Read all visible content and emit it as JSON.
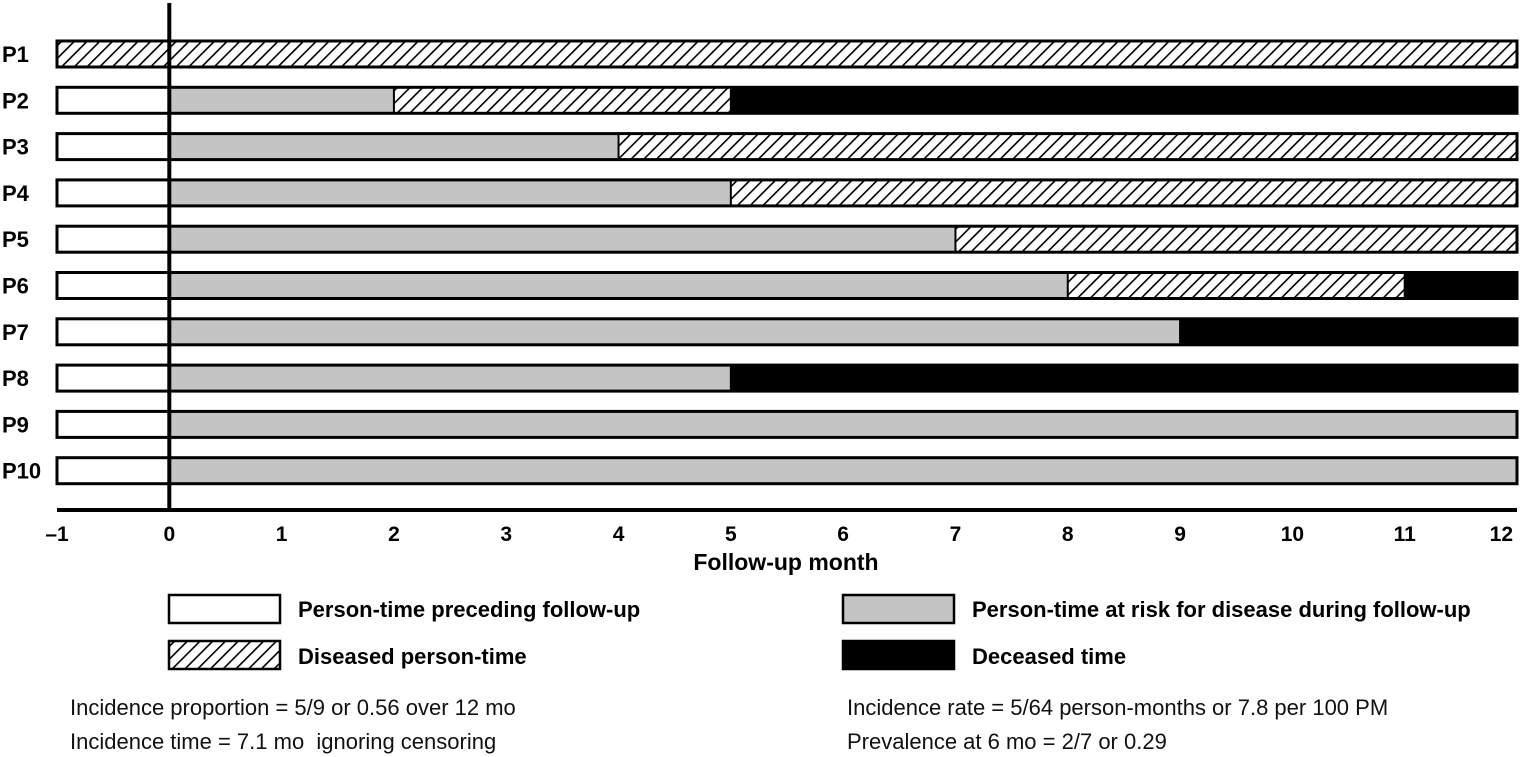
{
  "chart_data": {
    "type": "timeline",
    "xlabel": "Follow-up month",
    "xlim": [
      -1,
      12
    ],
    "x_ticks": [
      "–1",
      "0",
      "1",
      "2",
      "3",
      "4",
      "5",
      "6",
      "7",
      "8",
      "9",
      "10",
      "11",
      "12"
    ],
    "segment_colors": {
      "preceding": "#ffffff",
      "at_risk": "#c4c4c4",
      "diseased": "hatch",
      "deceased": "#000000"
    },
    "participants": [
      {
        "label": "P1",
        "segments": [
          {
            "start": -1,
            "end": 12,
            "state": "diseased"
          }
        ]
      },
      {
        "label": "P2",
        "segments": [
          {
            "start": -1,
            "end": 0,
            "state": "preceding"
          },
          {
            "start": 0,
            "end": 2,
            "state": "at_risk"
          },
          {
            "start": 2,
            "end": 5,
            "state": "diseased"
          },
          {
            "start": 5,
            "end": 12,
            "state": "deceased"
          }
        ]
      },
      {
        "label": "P3",
        "segments": [
          {
            "start": -1,
            "end": 0,
            "state": "preceding"
          },
          {
            "start": 0,
            "end": 4,
            "state": "at_risk"
          },
          {
            "start": 4,
            "end": 12,
            "state": "diseased"
          }
        ]
      },
      {
        "label": "P4",
        "segments": [
          {
            "start": -1,
            "end": 0,
            "state": "preceding"
          },
          {
            "start": 0,
            "end": 5,
            "state": "at_risk"
          },
          {
            "start": 5,
            "end": 12,
            "state": "diseased"
          }
        ]
      },
      {
        "label": "P5",
        "segments": [
          {
            "start": -1,
            "end": 0,
            "state": "preceding"
          },
          {
            "start": 0,
            "end": 7,
            "state": "at_risk"
          },
          {
            "start": 7,
            "end": 12,
            "state": "diseased"
          }
        ]
      },
      {
        "label": "P6",
        "segments": [
          {
            "start": -1,
            "end": 0,
            "state": "preceding"
          },
          {
            "start": 0,
            "end": 8,
            "state": "at_risk"
          },
          {
            "start": 8,
            "end": 11,
            "state": "diseased"
          },
          {
            "start": 11,
            "end": 12,
            "state": "deceased"
          }
        ]
      },
      {
        "label": "P7",
        "segments": [
          {
            "start": -1,
            "end": 0,
            "state": "preceding"
          },
          {
            "start": 0,
            "end": 9,
            "state": "at_risk"
          },
          {
            "start": 9,
            "end": 12,
            "state": "deceased"
          }
        ]
      },
      {
        "label": "P8",
        "segments": [
          {
            "start": -1,
            "end": 0,
            "state": "preceding"
          },
          {
            "start": 0,
            "end": 5,
            "state": "at_risk"
          },
          {
            "start": 5,
            "end": 12,
            "state": "deceased"
          }
        ]
      },
      {
        "label": "P9",
        "segments": [
          {
            "start": -1,
            "end": 0,
            "state": "preceding"
          },
          {
            "start": 0,
            "end": 12,
            "state": "at_risk"
          }
        ]
      },
      {
        "label": "P10",
        "segments": [
          {
            "start": -1,
            "end": 0,
            "state": "preceding"
          },
          {
            "start": 0,
            "end": 12,
            "state": "at_risk"
          }
        ]
      }
    ],
    "legend": [
      {
        "state": "preceding",
        "label": "Person-time preceding follow-up"
      },
      {
        "state": "at_risk",
        "label": "Person-time at risk for disease during follow-up"
      },
      {
        "state": "diseased",
        "label": "Diseased person-time"
      },
      {
        "state": "deceased",
        "label": "Deceased time"
      }
    ],
    "annotations": {
      "incidence_proportion": "Incidence proportion = 5/9 or 0.56 over 12 mo",
      "incidence_time": "Incidence time = 7.1 mo  ignoring censoring",
      "incidence_rate": "Incidence rate = 5/64 person-months or 7.8 per 100 PM",
      "prevalence": "Prevalence at 6 mo = 2/7 or 0.29"
    }
  }
}
